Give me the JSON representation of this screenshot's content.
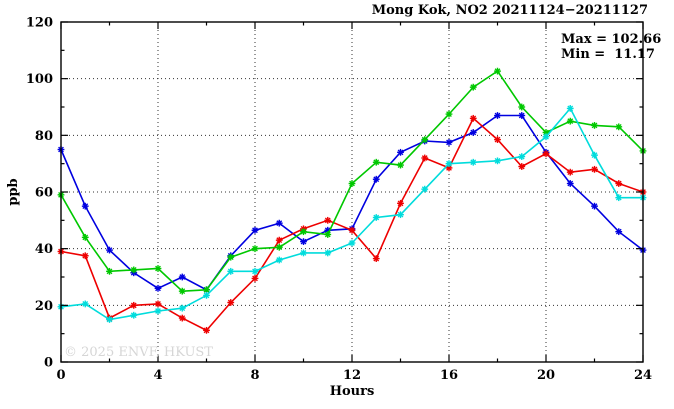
{
  "header": {
    "title": "Mong Kok, NO2 20211124−20211127"
  },
  "annotation": {
    "max_label": "Max = 102.66",
    "min_label": "Min =  11.17"
  },
  "watermark": "© 2025 ENVF, HKUST",
  "chart_data": {
    "type": "line",
    "title": "Mong Kok, NO2 20211124−20211127",
    "xlabel": "Hours",
    "ylabel": "ppb",
    "xlim": [
      0,
      24
    ],
    "ylim": [
      0,
      120
    ],
    "x_major_ticks": [
      0,
      4,
      8,
      12,
      16,
      20,
      24
    ],
    "x_minor_step": 2,
    "y_major_ticks": [
      0,
      20,
      40,
      60,
      80,
      100,
      120
    ],
    "y_minor_step": 10,
    "grid": "dotted-at-major-ticks",
    "legend_position": "none",
    "stat_max": 102.66,
    "stat_min": 11.17,
    "x": [
      0,
      1,
      2,
      3,
      4,
      5,
      6,
      7,
      8,
      9,
      10,
      11,
      12,
      13,
      14,
      15,
      16,
      17,
      18,
      19,
      20,
      21,
      22,
      23,
      24
    ],
    "series": [
      {
        "name": "blue",
        "color": "#0000e0",
        "values": [
          75,
          55,
          39.5,
          31.5,
          26,
          30,
          25.5,
          37.5,
          46.5,
          49,
          42.5,
          46.5,
          47,
          64.5,
          74,
          78,
          77.5,
          81,
          87,
          87,
          74,
          63,
          55,
          46,
          39.5
        ]
      },
      {
        "name": "red",
        "color": "#ee0000",
        "values": [
          39,
          37.5,
          15.5,
          20,
          20.5,
          15.5,
          11.17,
          21,
          29.5,
          43,
          47,
          50,
          46.5,
          36.5,
          56,
          72,
          68.5,
          86,
          78.5,
          69,
          73.5,
          67,
          68,
          63,
          60
        ]
      },
      {
        "name": "green",
        "color": "#00c800",
        "values": [
          59,
          44,
          32,
          32.5,
          33,
          25,
          25.5,
          37,
          40,
          40.5,
          46,
          45,
          63,
          70.5,
          69.5,
          78.5,
          87.5,
          97,
          102.66,
          90,
          81,
          85,
          83.5,
          83,
          74.5
        ]
      },
      {
        "name": "cyan",
        "color": "#00dcdc",
        "values": [
          19.5,
          20.5,
          15,
          16.5,
          18,
          19,
          23.5,
          32,
          32,
          36,
          38.5,
          38.5,
          42,
          51,
          52,
          61,
          70,
          70.5,
          71,
          72.5,
          79.5,
          89.5,
          73,
          58,
          58
        ]
      }
    ]
  }
}
